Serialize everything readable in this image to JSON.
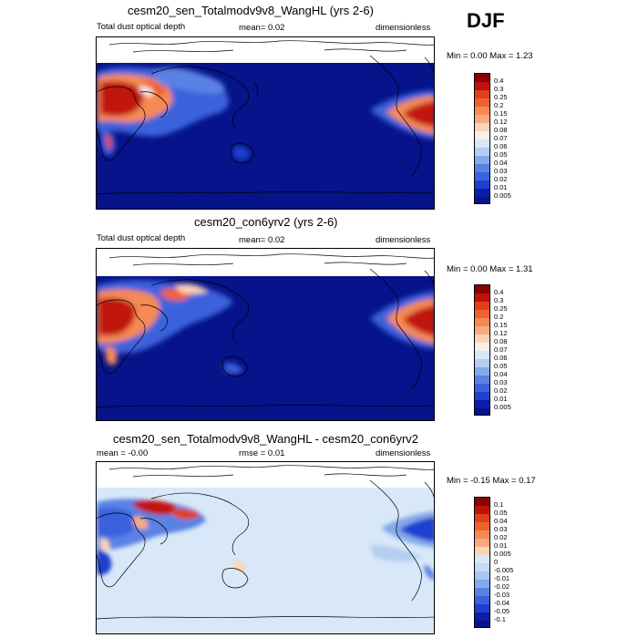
{
  "season": "DJF",
  "panels": [
    {
      "title": "cesm20_sen_Totalmodv9v8_WangHL (yrs 2-6)",
      "left_label": "Total dust optical depth",
      "mid_label": "mean=   0.02",
      "right_label": "dimensionless",
      "minmax": "Min =   0.00 Max =   1.23",
      "colorbar_levels": [
        "0.4",
        "0.3",
        "0.25",
        "0.2",
        "0.15",
        "0.12",
        "0.08",
        "0.07",
        "0.06",
        "0.05",
        "0.04",
        "0.03",
        "0.02",
        "0.01",
        "0.005"
      ]
    },
    {
      "title": "cesm20_con6yrv2 (yrs 2-6)",
      "left_label": "Total dust optical depth",
      "mid_label": "mean=   0.02",
      "right_label": "dimensionless",
      "minmax": "Min =   0.00 Max =   1.31",
      "colorbar_levels": [
        "0.4",
        "0.3",
        "0.25",
        "0.2",
        "0.15",
        "0.12",
        "0.08",
        "0.07",
        "0.06",
        "0.05",
        "0.04",
        "0.03",
        "0.02",
        "0.01",
        "0.005"
      ]
    },
    {
      "title": "cesm20_sen_Totalmodv9v8_WangHL - cesm20_con6yrv2",
      "left_label": "mean =   -0.00",
      "mid_label": "rmse =   0.01",
      "right_label": "dimensionless",
      "minmax": "Min =  -0.15 Max =   0.17",
      "colorbar_levels": [
        "0.1",
        "0.05",
        "0.04",
        "0.03",
        "0.02",
        "0.01",
        "0.005",
        "0",
        "-0.005",
        "-0.01",
        "-0.02",
        "-0.03",
        "-0.04",
        "-0.05",
        "-0.1"
      ]
    }
  ],
  "colors": {
    "abs_scale": [
      "#8b0000",
      "#c0120c",
      "#e0401c",
      "#f0622c",
      "#f58a54",
      "#f7aa80",
      "#fbd4b8",
      "#f5f0ea",
      "#d8e6f6",
      "#b4cdf0",
      "#84a8ea",
      "#5a82e4",
      "#3a62dc",
      "#1f3fcf",
      "#0c1ea8",
      "#06138a"
    ],
    "diff_scale": [
      "#8b0000",
      "#c0120c",
      "#e0401c",
      "#f0622c",
      "#f58a54",
      "#f7aa80",
      "#fbd4b8",
      "#d8e8f8",
      "#c4dbf6",
      "#a8c6f0",
      "#84a8ea",
      "#5a82e4",
      "#3a62dc",
      "#1f3fcf",
      "#0c1ea8",
      "#06138a"
    ]
  }
}
